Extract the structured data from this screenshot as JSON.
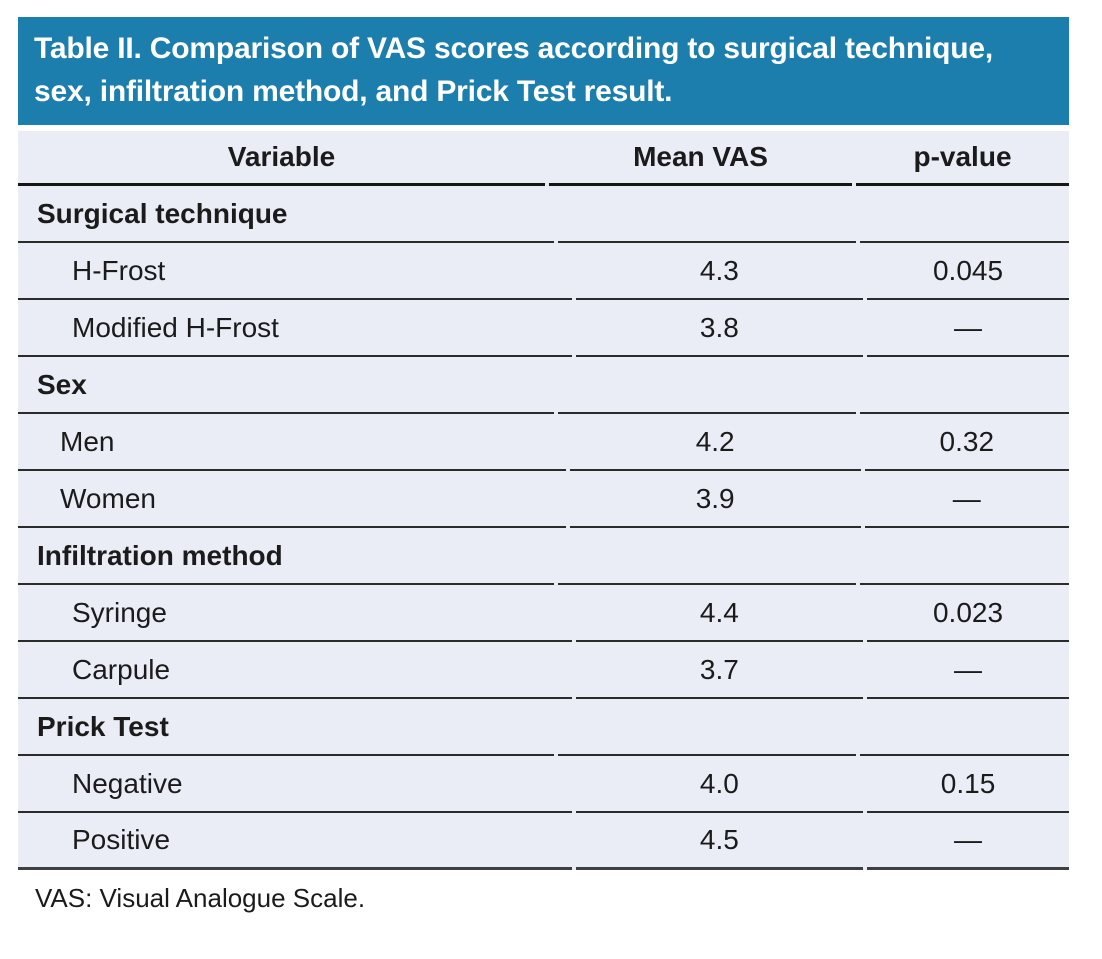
{
  "title": "Table II. Comparison of VAS scores according to surgical technique, sex, infiltration method, and Prick Test result.",
  "columns": {
    "variable": "Variable",
    "mean_vas": "Mean VAS",
    "p_value": "p-value"
  },
  "sections": [
    {
      "label": "Surgical technique",
      "rows": [
        {
          "label": "H-Frost",
          "mean_vas": "4.3",
          "p_value": "0.045"
        },
        {
          "label": "Modified H-Frost",
          "mean_vas": "3.8",
          "p_value": "—"
        }
      ]
    },
    {
      "label": "Sex",
      "rows": [
        {
          "label": "Men",
          "mean_vas": "4.2",
          "p_value": "0.32"
        },
        {
          "label": "Women",
          "mean_vas": "3.9",
          "p_value": "—"
        }
      ]
    },
    {
      "label": "Infiltration method",
      "rows": [
        {
          "label": "Syringe",
          "mean_vas": "4.4",
          "p_value": "0.023"
        },
        {
          "label": "Carpule",
          "mean_vas": "3.7",
          "p_value": "—"
        }
      ]
    },
    {
      "label": "Prick Test",
      "rows": [
        {
          "label": "Negative",
          "mean_vas": "4.0",
          "p_value": "0.15"
        },
        {
          "label": "Positive",
          "mean_vas": "4.5",
          "p_value": "—"
        }
      ]
    }
  ],
  "footnote": "VAS: Visual Analogue Scale.",
  "colors": {
    "title_band_blue": "#1c7ead",
    "row_background": "#eaedf6",
    "divider_line": "#2b2b2b",
    "text": "#1b1b1b",
    "title_text": "#ffffff"
  },
  "chart_data": {
    "type": "table",
    "title": "Table II. Comparison of VAS scores according to surgical technique, sex, infiltration method, and Prick Test result.",
    "columns": [
      "Variable",
      "Mean VAS",
      "p-value"
    ],
    "rows": [
      [
        "Surgical technique",
        "",
        ""
      ],
      [
        "H-Frost",
        "4.3",
        "0.045"
      ],
      [
        "Modified H-Frost",
        "3.8",
        "—"
      ],
      [
        "Sex",
        "",
        ""
      ],
      [
        "Men",
        "4.2",
        "0.32"
      ],
      [
        "Women",
        "3.9",
        "—"
      ],
      [
        "Infiltration method",
        "",
        ""
      ],
      [
        "Syringe",
        "4.4",
        "0.023"
      ],
      [
        "Carpule",
        "3.7",
        "—"
      ],
      [
        "Prick Test",
        "",
        ""
      ],
      [
        "Negative",
        "4.0",
        "0.15"
      ],
      [
        "Positive",
        "4.5",
        "—"
      ]
    ],
    "footnote": "VAS: Visual Analogue Scale."
  }
}
